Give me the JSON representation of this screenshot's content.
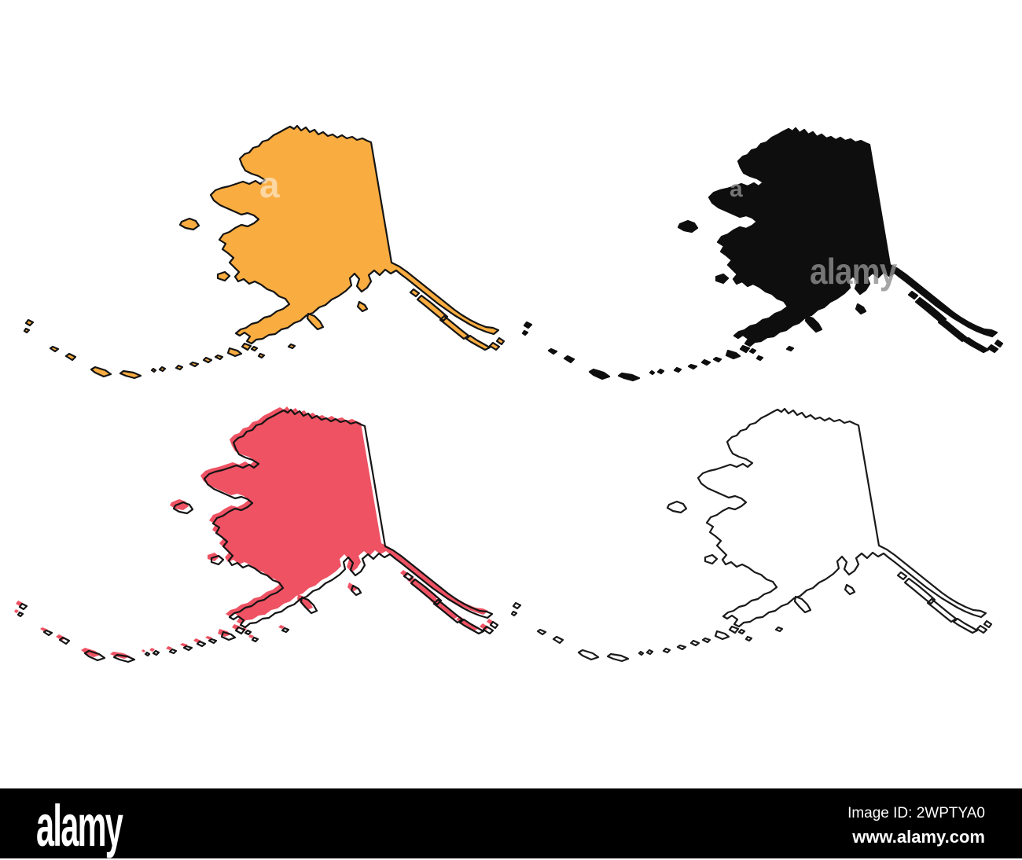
{
  "page": {
    "background": "#ffffff",
    "description": "Four Alaska state map vector silhouettes in a 2x2 grid"
  },
  "artwork": {
    "title": "Alaska map silhouettes",
    "variants": [
      {
        "name": "orange-filled-outline",
        "fill": "#F9AC40",
        "stroke": "#141414",
        "stroke_width": 2.2,
        "offset_outline": false
      },
      {
        "name": "black-silhouette",
        "fill": "#0E0E0E",
        "stroke": "#0E0E0E",
        "stroke_width": 2.2,
        "offset_outline": false
      },
      {
        "name": "red-sketch-offset-outline",
        "fill": "#EE5263",
        "stroke": "#141414",
        "stroke_width": 2.2,
        "offset_outline": true,
        "outline_dx": 5,
        "outline_dy": 4
      },
      {
        "name": "white-outline-only",
        "fill": "#FFFFFF",
        "stroke": "#1A1A1A",
        "stroke_width": 2.2,
        "offset_outline": false
      }
    ]
  },
  "watermarks": {
    "partial_letter_orange": "a",
    "partial_word_black": "alamy",
    "partial_letter_black": "a"
  },
  "footer": {
    "background": "#000000",
    "logo": "alamy",
    "image_id": "Image ID: 2WPTYA0",
    "website": "www.alamy.com"
  }
}
